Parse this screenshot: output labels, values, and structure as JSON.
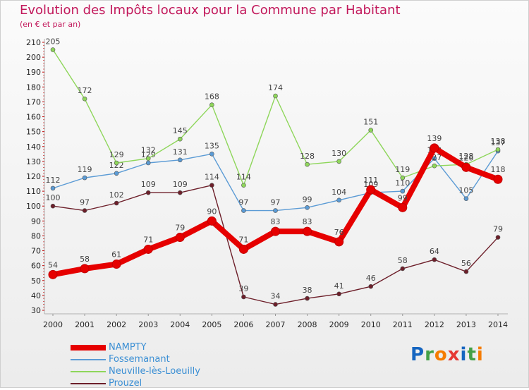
{
  "title": "Evolution des Impôts locaux pour la Commune par Habitant",
  "subtitle": "(en € et par an)",
  "brand": "Proxiti",
  "chart_data": {
    "type": "line",
    "title": "Evolution des Impôts locaux pour la Commune par Habitant",
    "subtitle": "(en € et par an)",
    "xlabel": "",
    "ylabel": "",
    "ylim": [
      30,
      210
    ],
    "yticks": [
      30,
      40,
      50,
      60,
      70,
      80,
      90,
      100,
      110,
      120,
      130,
      140,
      150,
      160,
      170,
      180,
      190,
      200,
      210
    ],
    "grid": false,
    "legend_position": "bottom-left",
    "categories": [
      "2000",
      "2001",
      "2002",
      "2003",
      "2004",
      "2005",
      "2006",
      "2007",
      "2008",
      "2009",
      "2010",
      "2011",
      "2012",
      "2013",
      "2014"
    ],
    "series": [
      {
        "name": "Fossemanant",
        "color": "#5b9bd5",
        "values": [
          112,
          119,
          122,
          129,
          131,
          135,
          97,
          97,
          99,
          104,
          109,
          110,
          132,
          105,
          137
        ]
      },
      {
        "name": "Neuville-lès-Loeuilly",
        "color": "#8ed65a",
        "values": [
          205,
          172,
          129,
          132,
          145,
          168,
          114,
          174,
          128,
          130,
          151,
          119,
          127,
          128,
          138
        ]
      },
      {
        "name": "Prouzel",
        "color": "#6d1f2a",
        "values": [
          100,
          97,
          102,
          109,
          109,
          114,
          39,
          34,
          38,
          41,
          46,
          58,
          64,
          56,
          79
        ]
      },
      {
        "name": "NAMPTY",
        "color": "#e60000",
        "values": [
          54,
          58,
          61,
          71,
          79,
          90,
          71,
          83,
          83,
          76,
          111,
          99,
          139,
          126,
          118
        ]
      }
    ]
  }
}
